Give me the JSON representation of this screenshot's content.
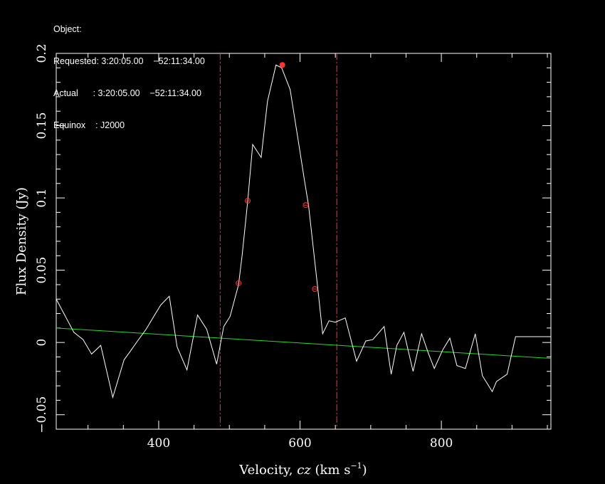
{
  "header": {
    "object_line": "Object:",
    "requested_line": "Requested: 3:20:05.00    −52:11:34.00",
    "actual_line": "Actual      : 3:20:05.00    −52:11:34.00",
    "equinox_line": "Equinox    : J2000"
  },
  "chart_data": {
    "type": "line",
    "xlabel_prefix": "Velocity, ",
    "xlabel_italic": "cz",
    "xlabel_units_open": " (km s",
    "xlabel_units_exp": "−1",
    "xlabel_units_close": ")",
    "ylabel": "Flux Density (Jy)",
    "xlim": [
      255,
      955
    ],
    "ylim": [
      -0.06,
      0.2
    ],
    "x_ticks": [
      400,
      600,
      800
    ],
    "x_tick_labels": [
      "400",
      "600",
      "800"
    ],
    "y_ticks": [
      -0.05,
      0,
      0.05,
      0.1,
      0.15,
      0.2
    ],
    "y_tick_labels": [
      "−0.05",
      "0",
      "0.05",
      "0.1",
      "0.15",
      "0.2"
    ],
    "grid": false,
    "colors": {
      "spectrum": "#ffffff",
      "baseline": "#22dd22",
      "window_lines": "#ff3333",
      "markers": "#ff3333"
    },
    "spectrum": {
      "x": [
        255,
        280,
        293,
        305,
        318,
        335,
        351,
        360,
        370,
        382,
        393,
        403,
        415,
        426,
        440,
        455,
        468,
        482,
        487,
        492,
        501,
        513,
        518,
        526,
        533,
        545,
        554,
        566,
        574,
        586,
        598,
        606,
        612,
        625,
        632,
        641,
        650,
        664,
        680,
        693,
        703,
        719,
        729,
        737,
        747,
        760,
        772,
        782,
        790,
        802,
        812,
        822,
        834,
        848,
        858,
        872,
        878,
        893,
        905,
        918,
        932,
        945,
        955
      ],
      "y": [
        0.03,
        0.007,
        0.002,
        -0.008,
        -0.002,
        -0.038,
        -0.012,
        -0.006,
        0.001,
        0.009,
        0.018,
        0.026,
        0.032,
        -0.003,
        -0.019,
        0.019,
        0.009,
        -0.015,
        -0.002,
        0.011,
        0.018,
        0.04,
        0.06,
        0.098,
        0.137,
        0.128,
        0.167,
        0.192,
        0.19,
        0.175,
        0.138,
        0.113,
        0.095,
        0.038,
        0.006,
        0.015,
        0.014,
        0.017,
        -0.013,
        0.001,
        0.002,
        0.011,
        -0.022,
        -0.002,
        0.007,
        -0.02,
        0.006,
        -0.008,
        -0.018,
        -0.005,
        0.003,
        -0.016,
        -0.018,
        0.006,
        -0.023,
        -0.034,
        -0.027,
        -0.022,
        0.004,
        0.004,
        0.004,
        0.004,
        0.004
      ]
    },
    "baseline": {
      "x": [
        255,
        955
      ],
      "y": [
        0.01,
        -0.011
      ]
    },
    "window_lines_x": [
      487,
      652
    ],
    "peak_marker": {
      "x": 575,
      "y": 0.192
    },
    "width_markers": [
      {
        "x": 513,
        "y": 0.041
      },
      {
        "x": 526,
        "y": 0.098
      },
      {
        "x": 608,
        "y": 0.095
      },
      {
        "x": 621,
        "y": 0.037
      }
    ]
  }
}
